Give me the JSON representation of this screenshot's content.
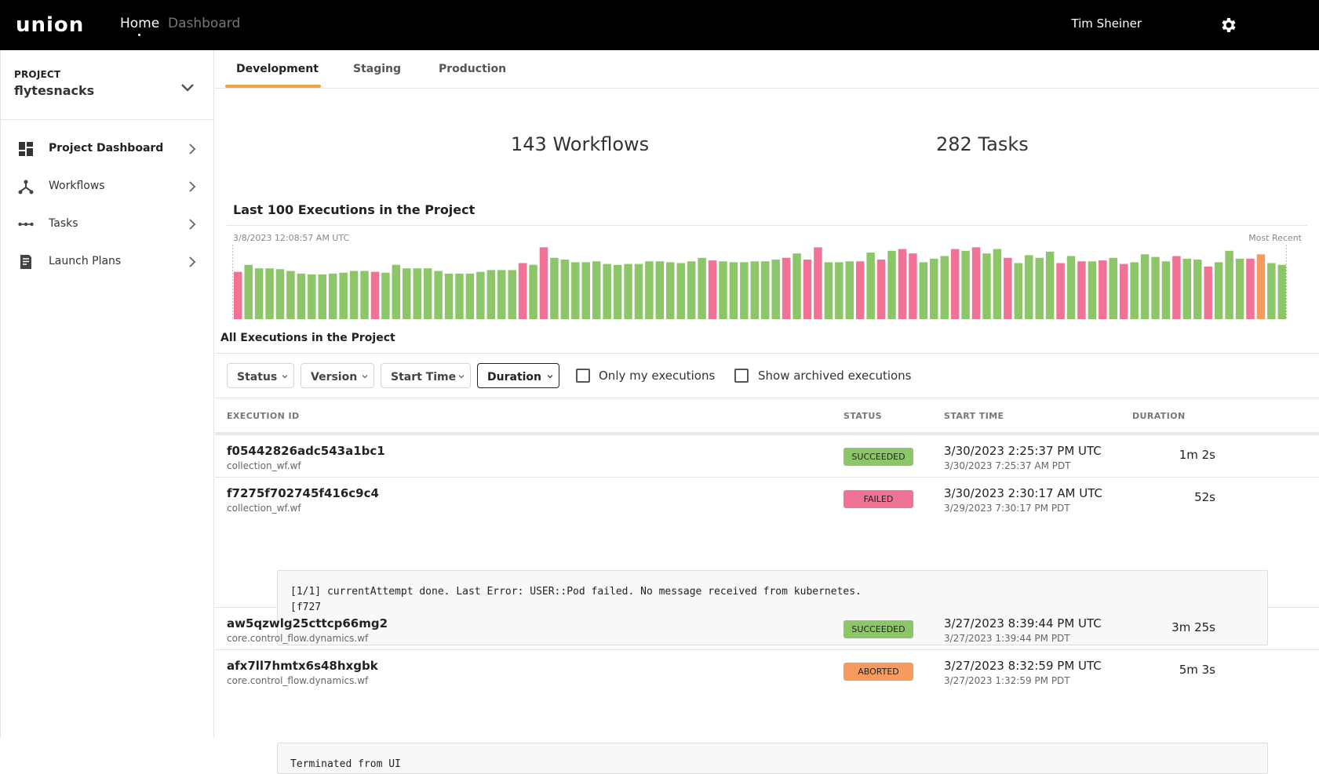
{
  "app": {
    "logo_text": "union"
  },
  "topnav": {
    "home": "Home",
    "dashboard": "Dashboard",
    "user": "Tim Sheiner"
  },
  "project": {
    "label": "PROJECT",
    "name": "flytesnacks"
  },
  "sidebar": {
    "items": [
      {
        "label": "Project Dashboard",
        "icon": "dashboard-icon"
      },
      {
        "label": "Workflows",
        "icon": "workflow-icon"
      },
      {
        "label": "Tasks",
        "icon": "tasks-icon"
      },
      {
        "label": "Launch Plans",
        "icon": "launch-plan-icon"
      }
    ]
  },
  "tabs": [
    "Development",
    "Staging",
    "Production"
  ],
  "stats": {
    "workflows": "143 Workflows",
    "tasks": "282 Tasks"
  },
  "chart": {
    "title": "Last 100 Executions in the Project",
    "start_label": "3/8/2023 12:08:57 AM UTC",
    "end_label": "Most Recent"
  },
  "chart_data": {
    "type": "bar",
    "title": "Last 100 Executions in the Project",
    "colors": {
      "succeeded": "#8cc669",
      "failed": "#f07396",
      "aborted": "#f79a5e"
    },
    "statuses": [
      "f",
      "s",
      "s",
      "s",
      "s",
      "s",
      "s",
      "s",
      "s",
      "s",
      "s",
      "s",
      "s",
      "f",
      "s",
      "s",
      "s",
      "s",
      "s",
      "s",
      "s",
      "s",
      "s",
      "s",
      "s",
      "s",
      "s",
      "f",
      "s",
      "f",
      "s",
      "s",
      "s",
      "s",
      "s",
      "s",
      "s",
      "s",
      "s",
      "s",
      "s",
      "s",
      "s",
      "s",
      "s",
      "f",
      "s",
      "s",
      "s",
      "s",
      "s",
      "s",
      "f",
      "s",
      "f",
      "f",
      "s",
      "s",
      "s",
      "f",
      "s",
      "f",
      "s",
      "f",
      "f",
      "s",
      "s",
      "s",
      "f",
      "s",
      "f",
      "s",
      "s",
      "f",
      "s",
      "s",
      "s",
      "s",
      "f",
      "s",
      "f",
      "s",
      "f",
      "s",
      "f",
      "s",
      "s",
      "s",
      "s",
      "f",
      "s",
      "s",
      "f",
      "s",
      "s",
      "s",
      "f",
      "a",
      "s",
      "s"
    ],
    "values": [
      54,
      62,
      58,
      58,
      57,
      55,
      52,
      51,
      51,
      52,
      53,
      55,
      55,
      54,
      53,
      62,
      58,
      58,
      58,
      55,
      52,
      52,
      52,
      54,
      56,
      56,
      56,
      64,
      62,
      82,
      70,
      68,
      65,
      65,
      66,
      63,
      62,
      63,
      63,
      66,
      66,
      65,
      64,
      66,
      70,
      67,
      66,
      65,
      65,
      66,
      66,
      68,
      70,
      75,
      68,
      82,
      65,
      65,
      66,
      66,
      76,
      68,
      78,
      80,
      75,
      65,
      69,
      72,
      80,
      78,
      82,
      75,
      80,
      70,
      64,
      73,
      70,
      77,
      64,
      72,
      66,
      66,
      67,
      70,
      63,
      65,
      74,
      71,
      66,
      72,
      69,
      68,
      60,
      65,
      78,
      69,
      69,
      74,
      64,
      62
    ]
  },
  "executions_section": {
    "title": "All Executions in the Project"
  },
  "filters": {
    "status": "Status",
    "version": "Version",
    "start_time": "Start Time",
    "duration": "Duration",
    "only_mine": "Only my executions",
    "archived": "Show archived executions"
  },
  "table": {
    "headers": {
      "id": "EXECUTION ID",
      "status": "STATUS",
      "start": "START TIME",
      "duration": "DURATION"
    },
    "rows": [
      {
        "id": "f05442826adc543a1bc1",
        "workflow": "collection_wf.wf",
        "status": "SUCCEEDED",
        "start_utc": "3/30/2023 2:25:37 PM UTC",
        "start_local": "3/30/2023 7:25:37 AM PDT",
        "duration": "1m 2s"
      },
      {
        "id": "f7275f702745f416c9c4",
        "workflow": "collection_wf.wf",
        "status": "FAILED",
        "start_utc": "3/30/2023 2:30:17 AM UTC",
        "start_local": "3/29/2023 7:30:17 PM PDT",
        "duration": "52s",
        "error": "[1/1] currentAttempt done. Last Error: USER::Pod failed. No message received from kubernetes.\n[f727"
      },
      {
        "id": "aw5qzwlg25cttcp66mg2",
        "workflow": "core.control_flow.dynamics.wf",
        "status": "SUCCEEDED",
        "start_utc": "3/27/2023 8:39:44 PM UTC",
        "start_local": "3/27/2023 1:39:44 PM PDT",
        "duration": "3m 25s"
      },
      {
        "id": "afx7ll7hmtx6s48hxgbk",
        "workflow": "core.control_flow.dynamics.wf",
        "status": "ABORTED",
        "start_utc": "3/27/2023 8:32:59 PM UTC",
        "start_local": "3/27/2023 1:32:59 PM PDT",
        "duration": "5m 3s",
        "error": "Terminated from UI"
      }
    ]
  },
  "status_colors": {
    "SUCCEEDED": "#8cc669",
    "FAILED": "#f07396",
    "ABORTED": "#f79a5e"
  }
}
